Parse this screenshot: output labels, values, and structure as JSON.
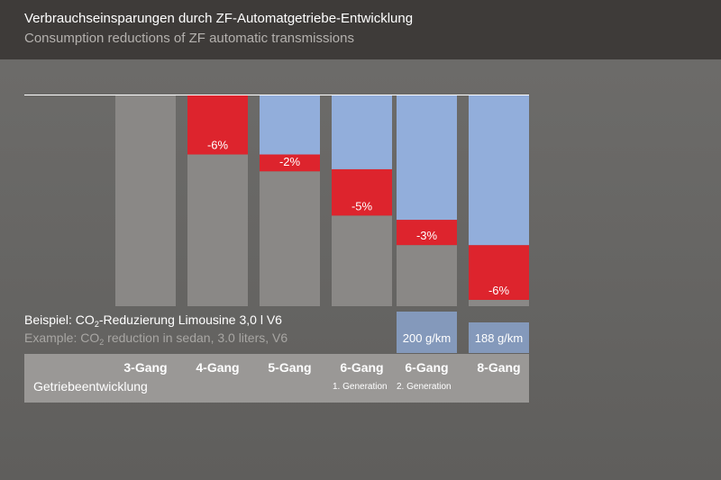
{
  "header": {
    "title_de": "Verbrauchseinsparungen durch ZF-Automatgetriebe-Entwicklung",
    "title_en": "Consumption reductions of ZF automatic transmissions"
  },
  "note": {
    "de_prefix": "Beispiel: CO",
    "de_sub": "2",
    "de_suffix": "-Reduzierung Limousine 3,0 l V6",
    "en_prefix": "Example: CO",
    "en_sub": "2",
    "en_suffix": " reduction in sedan, 3.0 liters, V6"
  },
  "emissions": [
    "200 g/km",
    "188 g/km"
  ],
  "axis": {
    "title": "Getriebeentwicklung",
    "categories": [
      "3-Gang",
      "4-Gang",
      "5-Gang",
      "6-Gang",
      "6-Gang",
      "8-Gang"
    ],
    "generations": [
      "1. Generation",
      "2. Generation"
    ]
  },
  "colors": {
    "header_bg": "#3e3b39",
    "remaining": "#8a8886",
    "reduction": "#dd242d",
    "cumulative_saving": "#92aedb",
    "emission_box": "#8499bb",
    "axis_panel": "#9a9896"
  },
  "chart_data": {
    "type": "bar",
    "categories": [
      "3-Gang",
      "4-Gang",
      "5-Gang",
      "6-Gang 1. Generation",
      "6-Gang 2. Generation",
      "8-Gang"
    ],
    "ylim": [
      0,
      100
    ],
    "series": [
      {
        "values": [
          100,
          72,
          64,
          43,
          29,
          3
        ]
      },
      {
        "values": [
          0,
          28,
          8,
          22,
          12,
          26
        ]
      },
      {
        "values": [
          0,
          0,
          28,
          35,
          59,
          71
        ]
      }
    ],
    "labels": [
      "",
      "-6%",
      "-2%",
      "-5%",
      "-3%",
      "-6%"
    ],
    "label_position": [
      "",
      "bottom",
      "bottom",
      "bottom",
      "bottom",
      "bottom"
    ]
  }
}
